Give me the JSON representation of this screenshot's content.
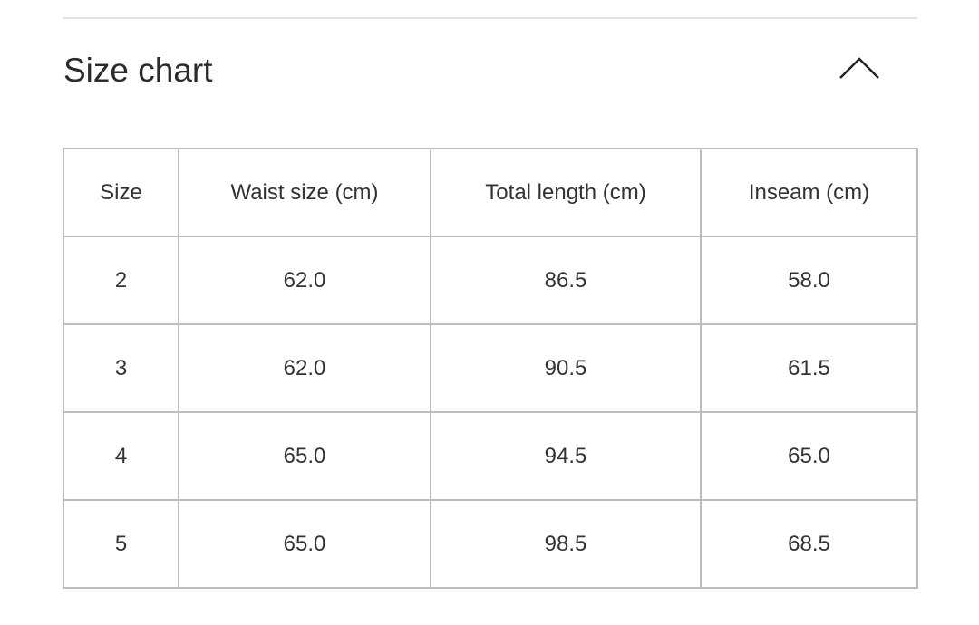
{
  "section": {
    "title": "Size chart",
    "toggle_icon": "chevron-up-icon"
  },
  "table": {
    "headers": [
      "Size",
      "Waist size (cm)",
      "Total length (cm)",
      "Inseam (cm)"
    ],
    "rows": [
      [
        "2",
        "62.0",
        "86.5",
        "58.0"
      ],
      [
        "3",
        "62.0",
        "90.5",
        "61.5"
      ],
      [
        "4",
        "65.0",
        "94.5",
        "65.0"
      ],
      [
        "5",
        "65.0",
        "98.5",
        "68.5"
      ]
    ]
  }
}
